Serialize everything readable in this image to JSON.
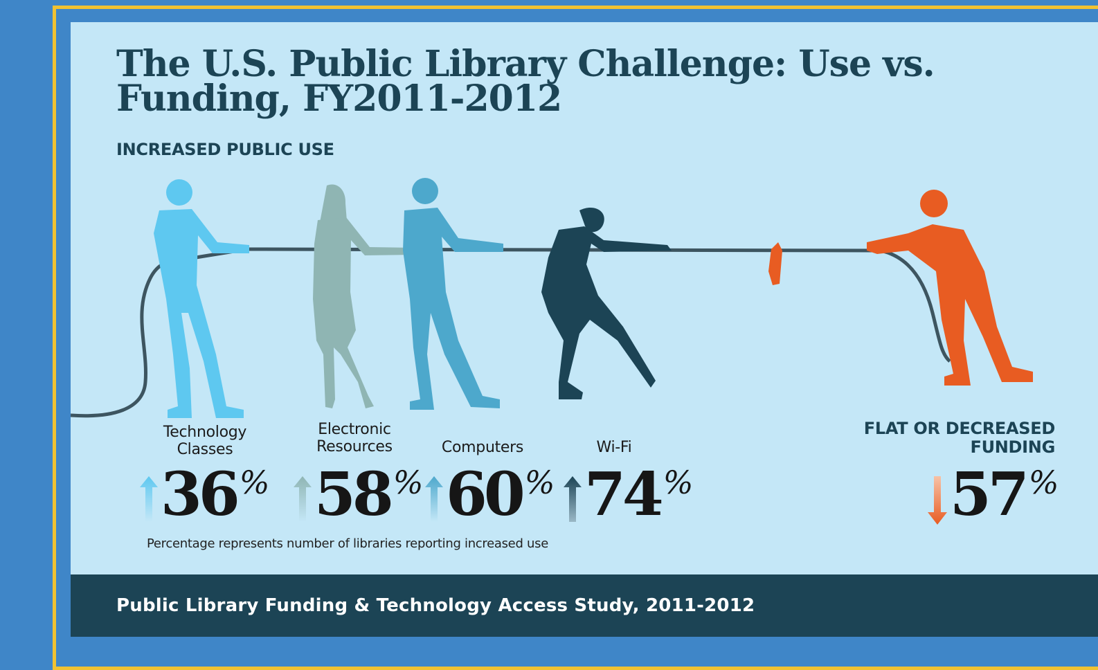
{
  "title": "The U.S. Public Library Challenge: Use vs. Funding, FY2011-2012",
  "subtitle": "INCREASED PUBLIC USE",
  "note": "Percentage represents number of libraries reporting increased use",
  "source": "Public Library Funding & Technology Access Study, 2011-2012",
  "colors": {
    "background": "#3f86c8",
    "border": "#f1c232",
    "panel": "#c4e7f7",
    "dark_teal": "#1c4455",
    "technology_classes": "#5ec8f0",
    "electronic_resources": "#8fb5b3",
    "computers": "#4da8cc",
    "wifi": "#1c4455",
    "funding": "#e85c22"
  },
  "chart_data": {
    "type": "bar",
    "unit": "%",
    "use": {
      "label": "INCREASED PUBLIC USE",
      "direction": "up",
      "categories": [
        "Technology Classes",
        "Electronic Resources",
        "Computers",
        "Wi-Fi"
      ],
      "values": [
        36,
        58,
        60,
        74
      ]
    },
    "funding": {
      "label": "FLAT OR DECREASED FUNDING",
      "direction": "down",
      "value": 57
    }
  }
}
